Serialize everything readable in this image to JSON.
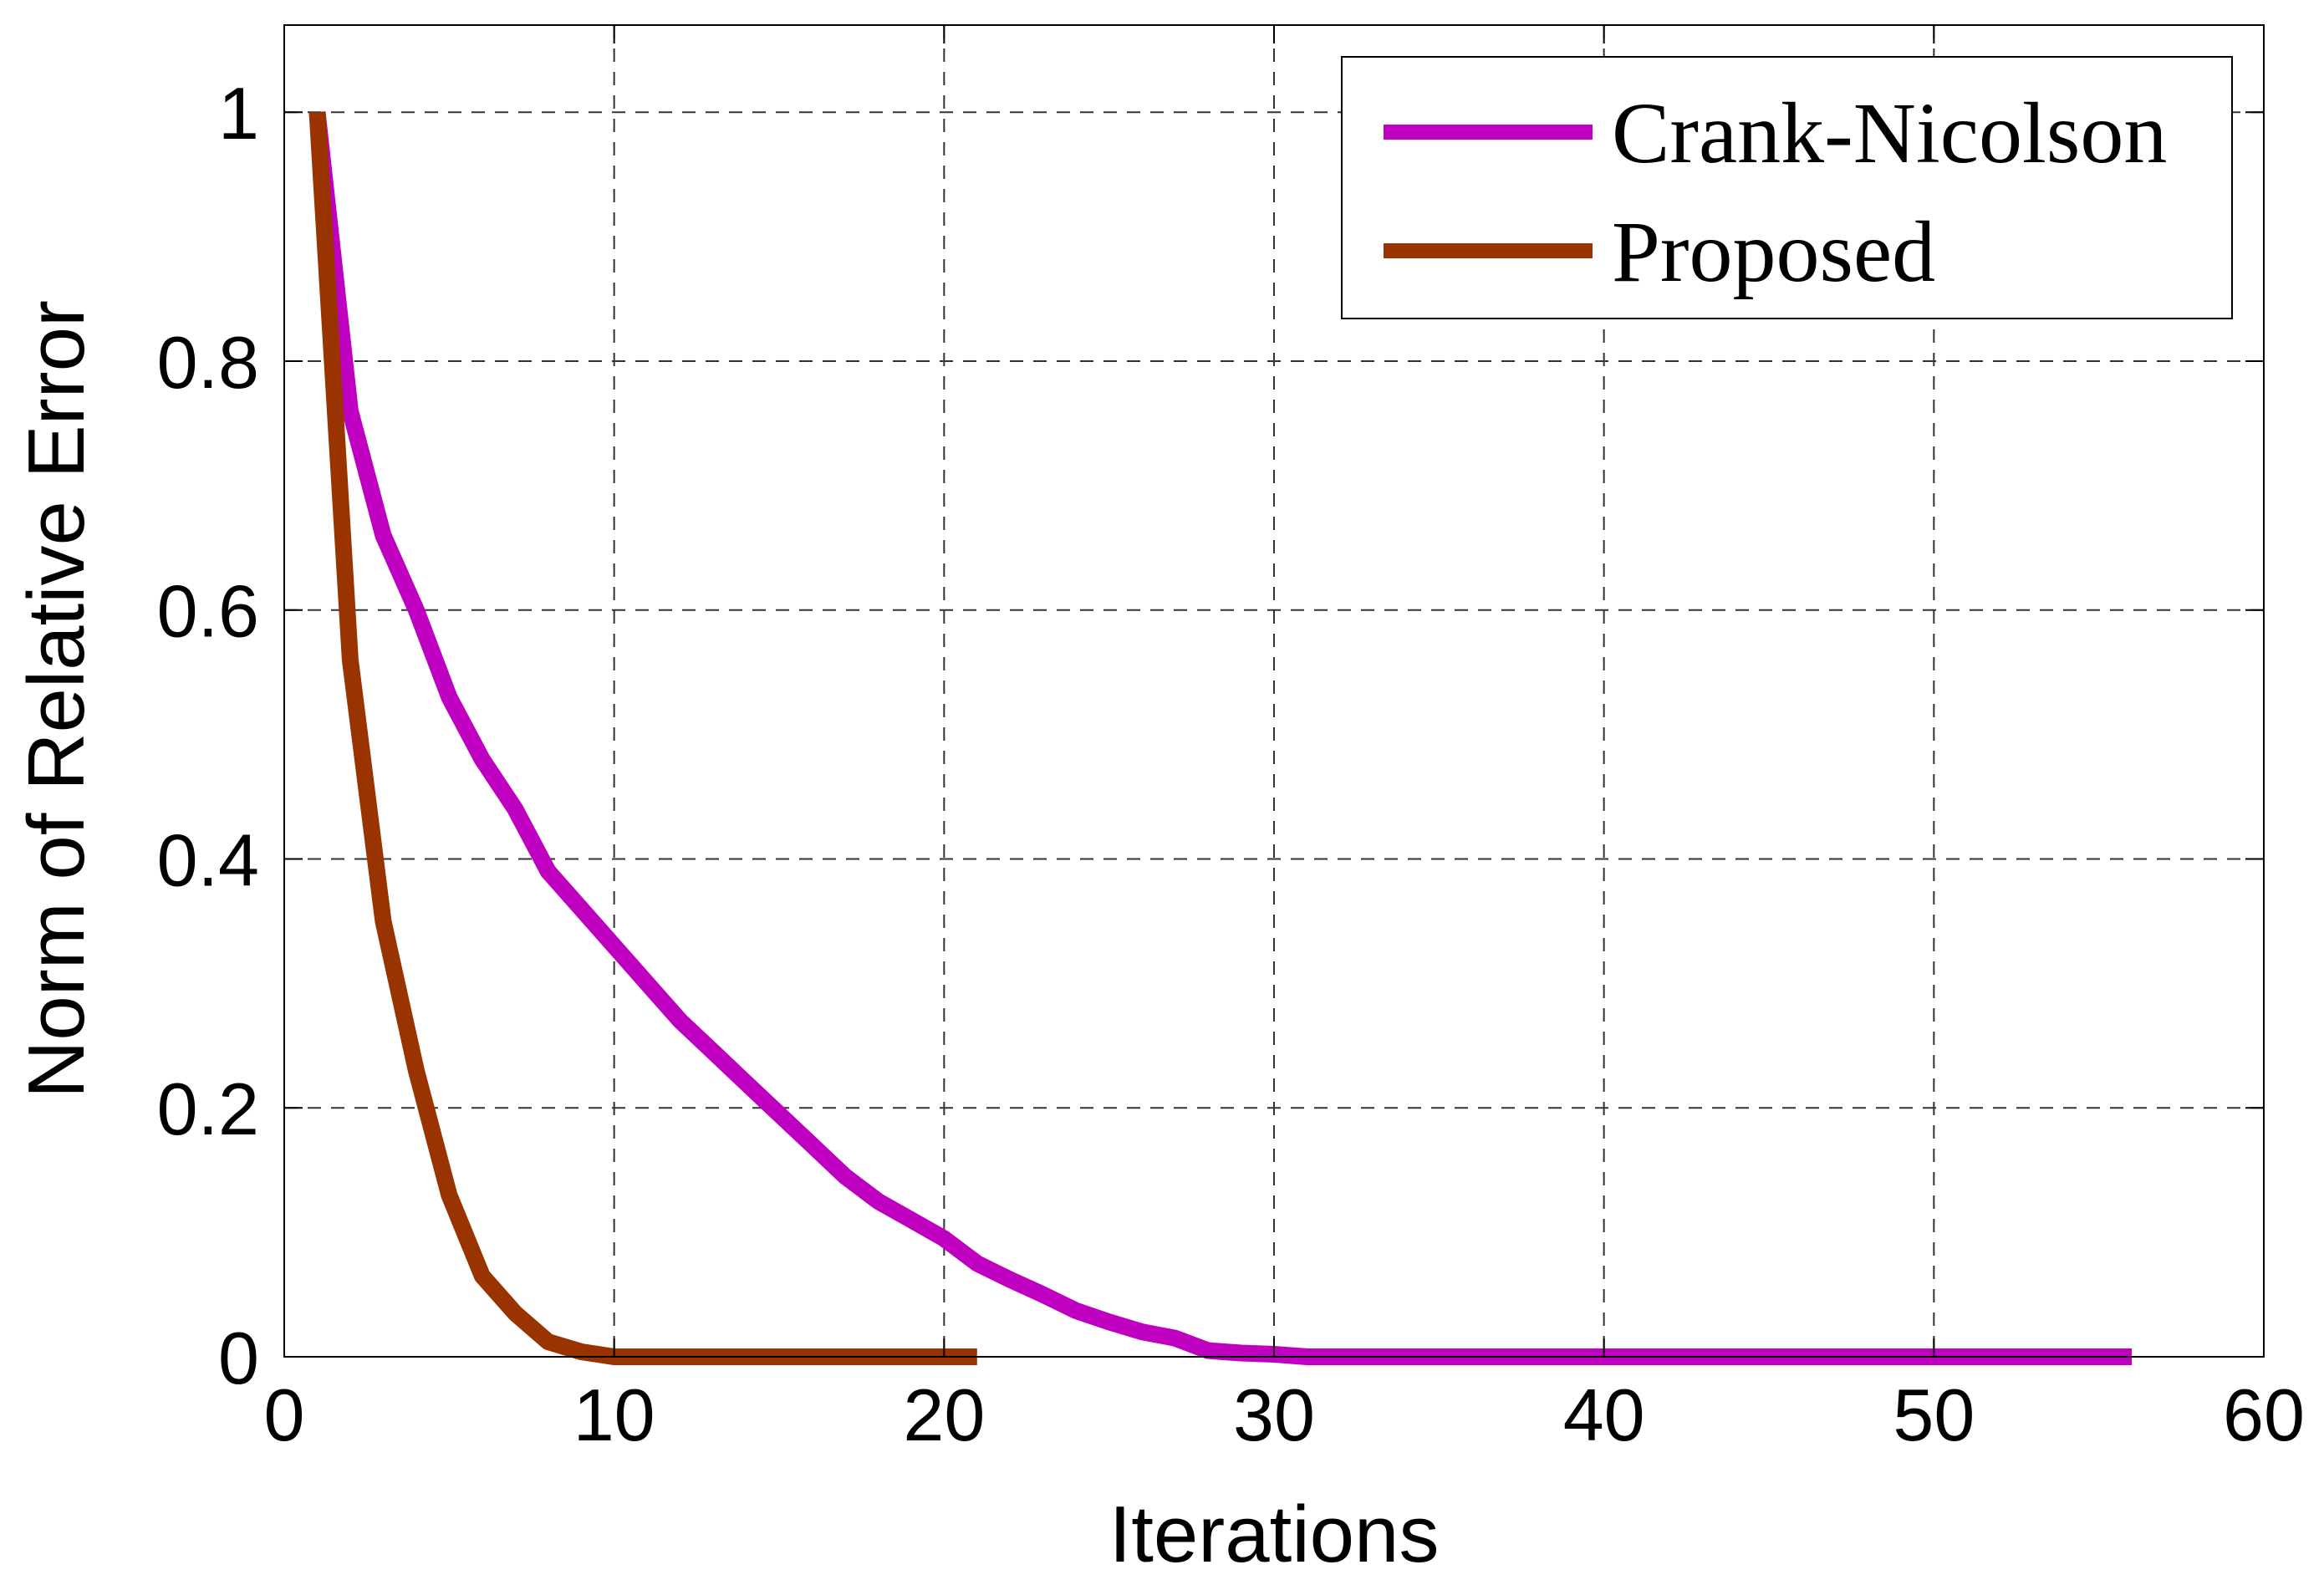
{
  "chart_data": {
    "type": "line",
    "xlabel": "Iterations",
    "ylabel": "Norm of Relative Error",
    "xlim": [
      0,
      60
    ],
    "ylim": [
      0,
      1.07
    ],
    "xticks": [
      0,
      10,
      20,
      30,
      40,
      50,
      60
    ],
    "yticks": [
      0,
      0.2,
      0.4,
      0.6,
      0.8,
      1
    ],
    "xtick_labels": [
      "0",
      "10",
      "20",
      "30",
      "40",
      "50",
      "60"
    ],
    "ytick_labels": [
      "0",
      "0.2",
      "0.4",
      "0.6",
      "0.8",
      "1"
    ],
    "grid": true,
    "legend_position": "top-right",
    "series": [
      {
        "name": "Crank-Nicolson",
        "color": "#c000c0",
        "x": [
          1,
          2,
          3,
          4,
          5,
          6,
          7,
          8,
          9,
          10,
          11,
          12,
          13,
          14,
          15,
          16,
          17,
          18,
          19,
          20,
          21,
          22,
          23,
          24,
          25,
          26,
          27,
          28,
          29,
          30,
          31,
          35,
          40,
          45,
          50,
          56
        ],
        "y": [
          1.0,
          0.76,
          0.66,
          0.6,
          0.53,
          0.48,
          0.44,
          0.39,
          0.36,
          0.33,
          0.3,
          0.27,
          0.245,
          0.22,
          0.195,
          0.17,
          0.145,
          0.125,
          0.11,
          0.095,
          0.075,
          0.062,
          0.05,
          0.037,
          0.028,
          0.02,
          0.015,
          0.005,
          0.003,
          0.002,
          0.0,
          0.0,
          0.0,
          0.0,
          0.0,
          0.0
        ]
      },
      {
        "name": "Proposed",
        "color": "#993300",
        "x": [
          1,
          2,
          3,
          4,
          5,
          6,
          7,
          8,
          9,
          10,
          12,
          15,
          18,
          21
        ],
        "y": [
          1.0,
          0.56,
          0.35,
          0.23,
          0.13,
          0.065,
          0.035,
          0.012,
          0.004,
          0.0,
          0.0,
          0.0,
          0.0,
          0.0
        ]
      }
    ]
  }
}
